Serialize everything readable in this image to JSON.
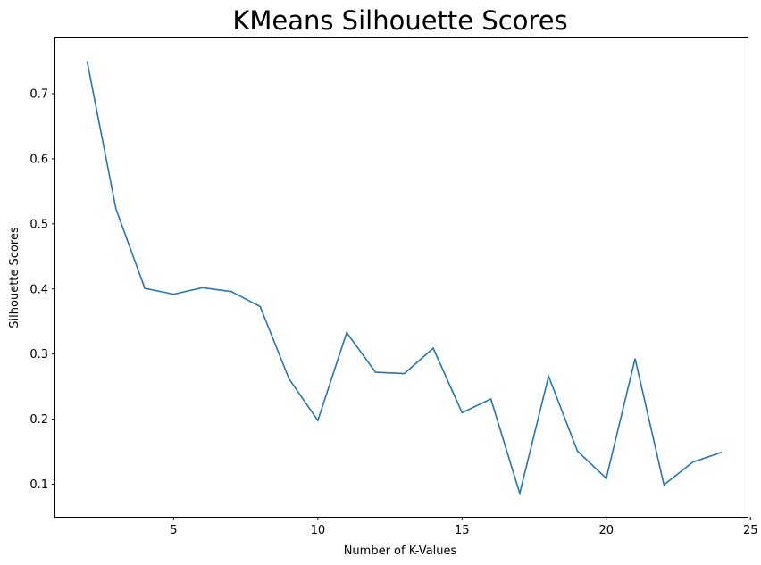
{
  "chart_data": {
    "type": "line",
    "title": "KMeans Silhouette Scores",
    "xlabel": "Number of K-Values",
    "ylabel": "Silhouette Scores",
    "xlim": [
      0.9,
      24.9
    ],
    "ylim": [
      0.05,
      0.785
    ],
    "xticks": [
      5,
      10,
      15,
      20,
      25
    ],
    "yticks": [
      0.1,
      0.2,
      0.3,
      0.4,
      0.5,
      0.6,
      0.7
    ],
    "grid": false,
    "color": "#1f77b4",
    "series": [
      {
        "x": [
          2,
          3,
          4,
          5,
          6,
          7,
          8,
          9,
          10,
          11,
          12,
          13,
          14,
          15,
          16,
          17,
          18,
          19,
          20,
          21,
          22,
          23,
          24
        ],
        "values": [
          0.75,
          0.523,
          0.401,
          0.392,
          0.402,
          0.396,
          0.373,
          0.262,
          0.198,
          0.333,
          0.272,
          0.27,
          0.309,
          0.21,
          0.231,
          0.086,
          0.266,
          0.151,
          0.109,
          0.293,
          0.099,
          0.134,
          0.149
        ]
      }
    ]
  }
}
